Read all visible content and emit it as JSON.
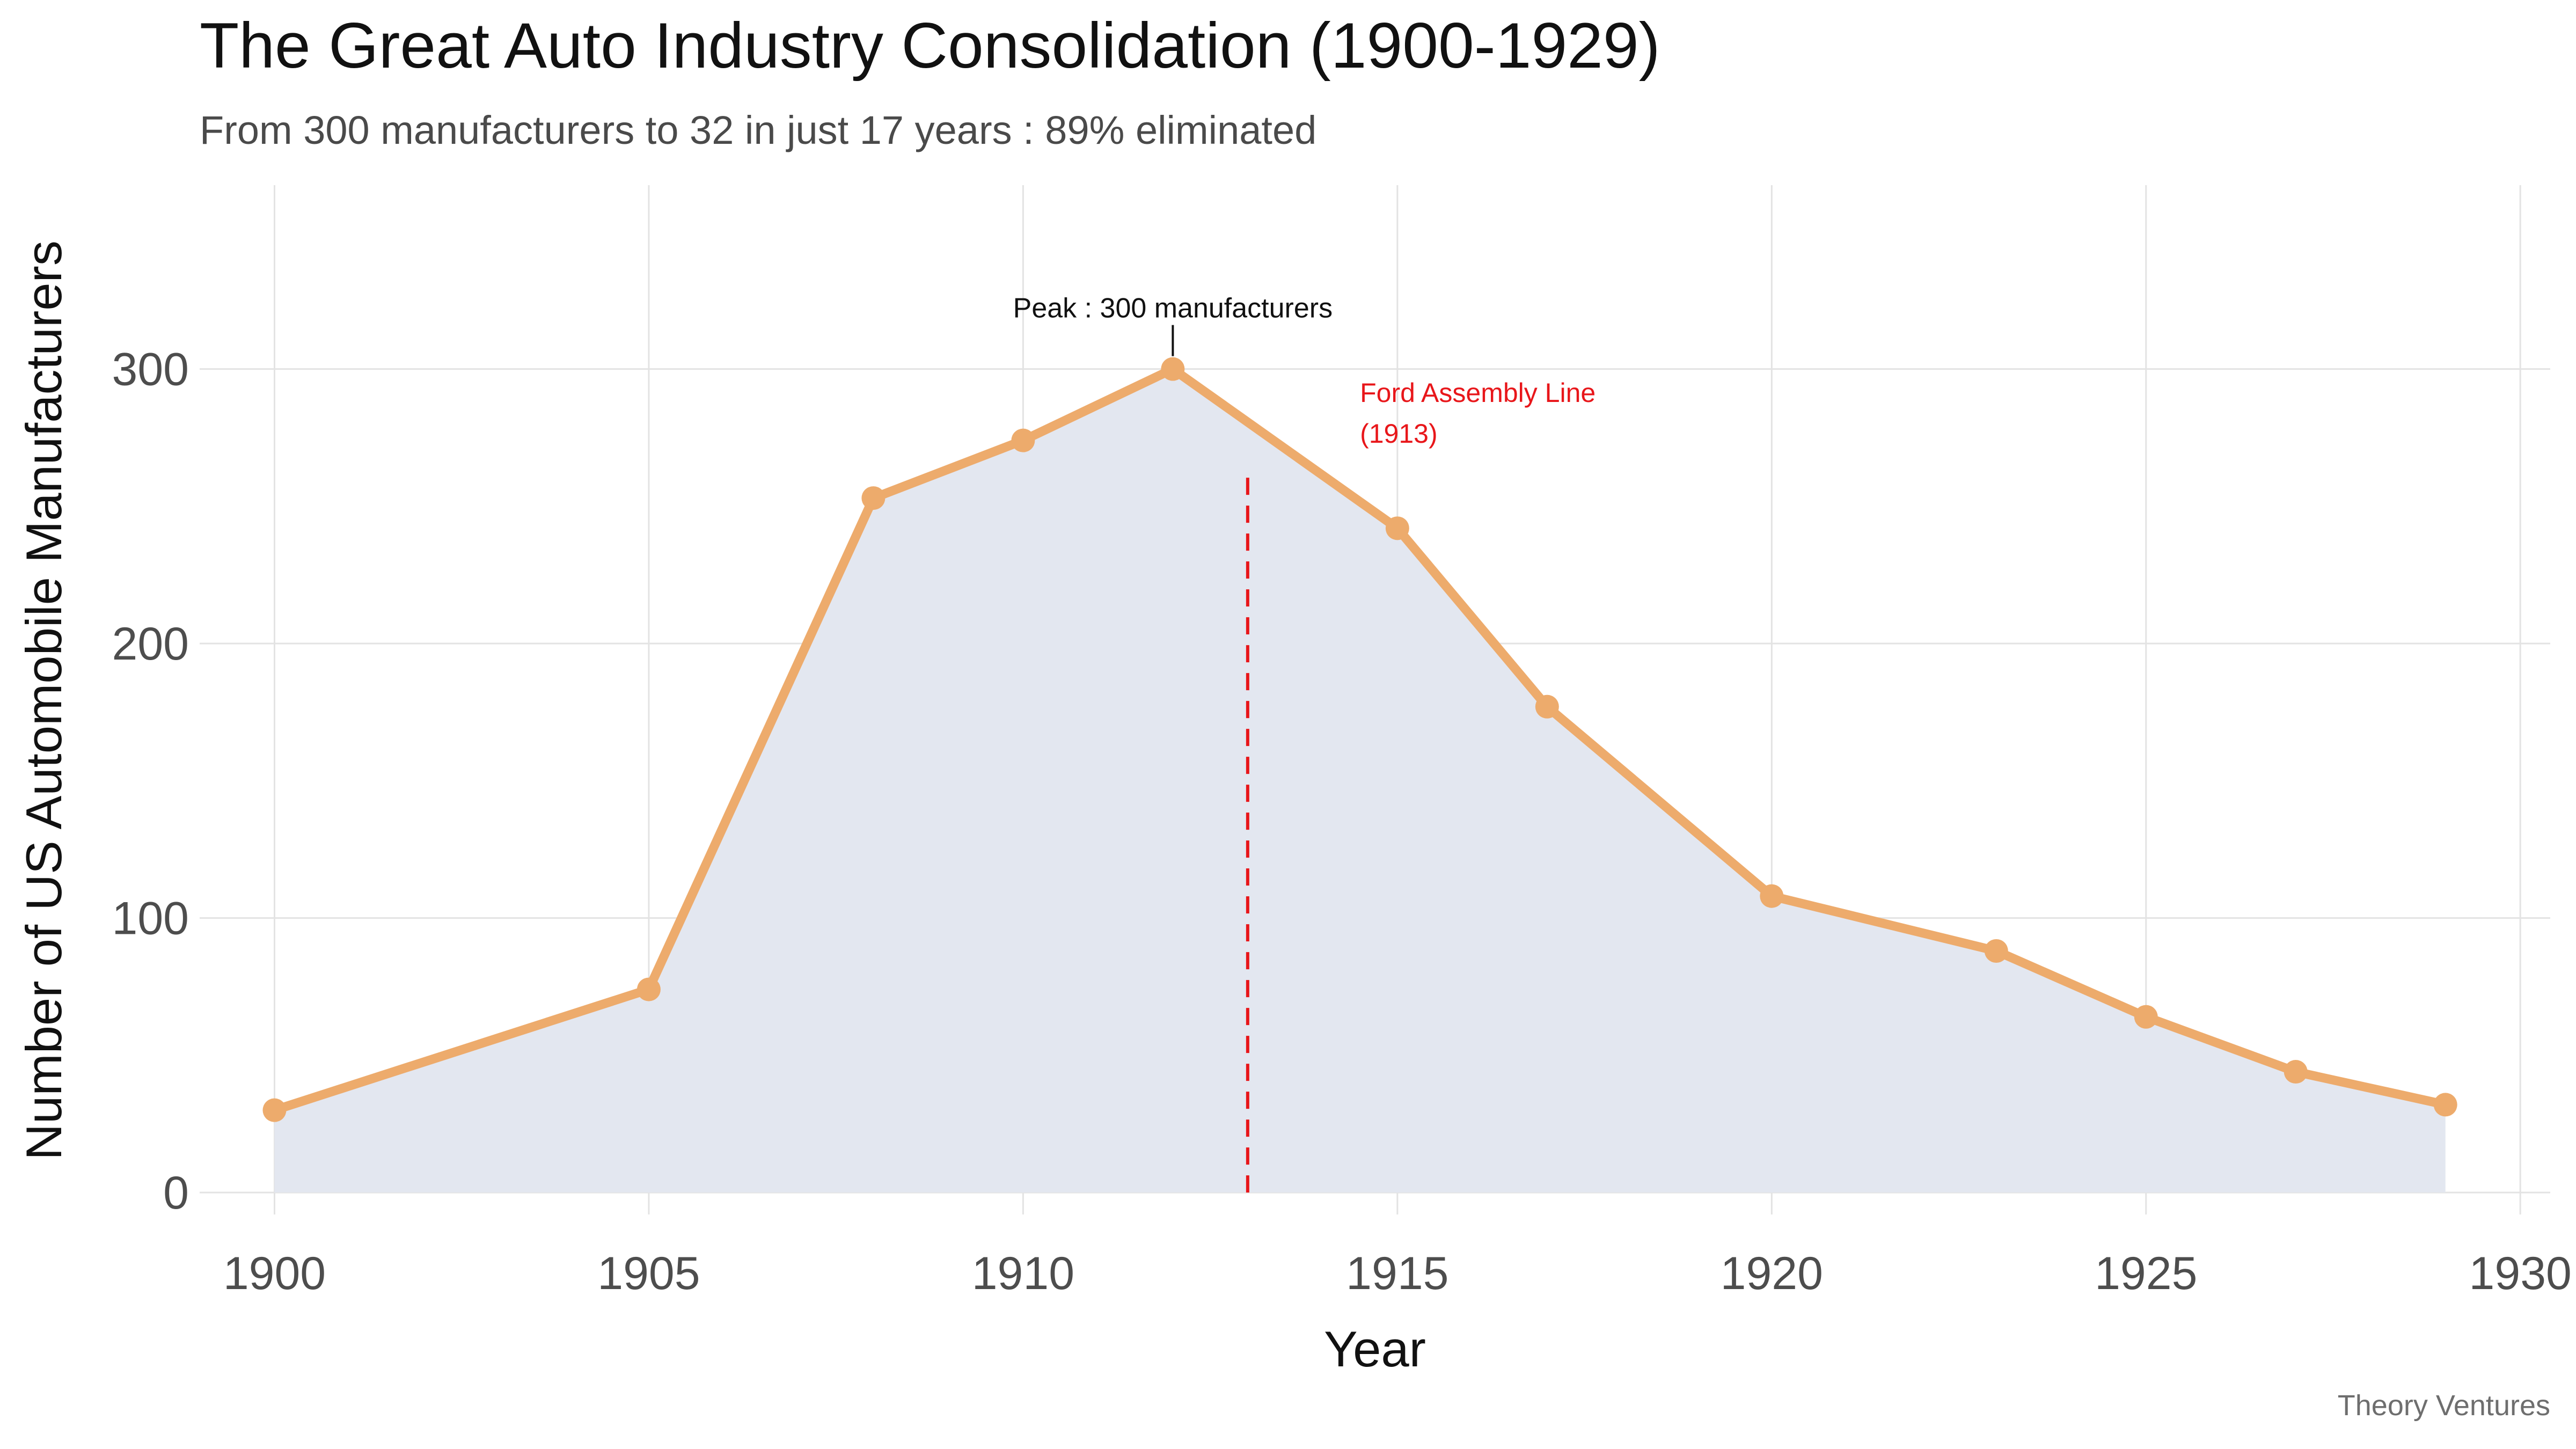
{
  "chart_data": {
    "type": "line",
    "title": "The Great Auto Industry Consolidation (1900-1929)",
    "subtitle": "From 300 manufacturers to 32 in just 17 years : 89% eliminated",
    "xlabel": "Year",
    "ylabel": "Number of US Automobile Manufacturers",
    "caption": "Theory Ventures",
    "xlim": [
      1899,
      1930.4
    ],
    "ylim": [
      -8,
      367
    ],
    "x_ticks": [
      1900,
      1905,
      1910,
      1915,
      1920,
      1925,
      1930
    ],
    "y_ticks": [
      0,
      100,
      200,
      300
    ],
    "grid": true,
    "series": [
      {
        "name": "US Automobile Manufacturers",
        "x": [
          1900,
          1905,
          1908,
          1910,
          1912,
          1915,
          1917,
          1920,
          1923,
          1925,
          1927,
          1929
        ],
        "values": [
          30,
          74,
          253,
          274,
          300,
          242,
          177,
          108,
          88,
          64,
          44,
          32
        ],
        "color": "#edab6c",
        "fill_color": "#e3e7f0"
      }
    ],
    "annotations": [
      {
        "text": "Peak : 300 manufacturers",
        "x": 1912,
        "y": 300,
        "color": "#111111"
      },
      {
        "type": "vline",
        "x": 1913,
        "y_range": [
          0,
          262
        ],
        "lines": [
          "Ford Assembly Line",
          "(1913)"
        ],
        "label_x": 1914.5,
        "label_y": 288,
        "color": "#e8161a"
      }
    ]
  }
}
